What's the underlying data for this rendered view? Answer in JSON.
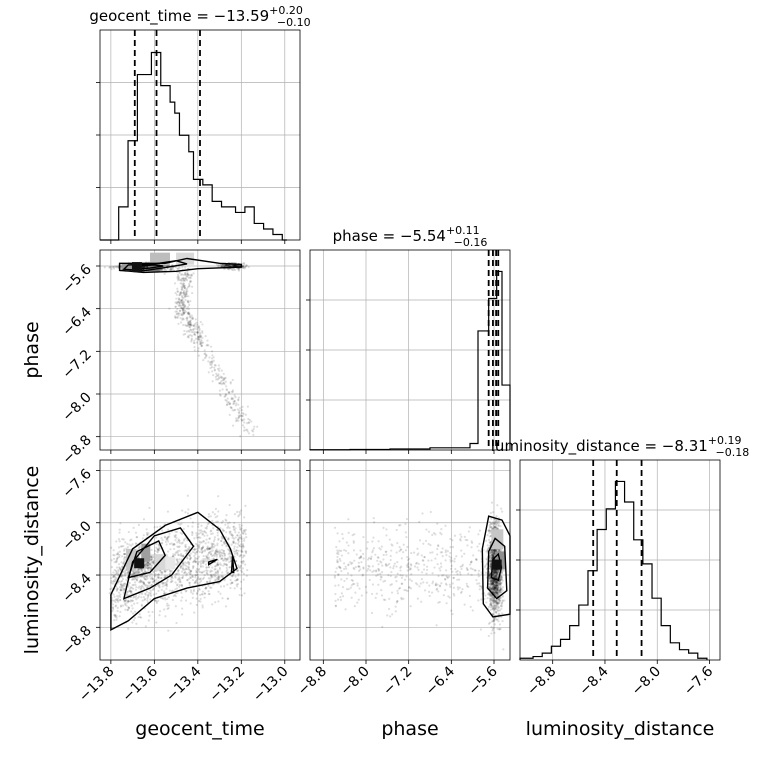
{
  "chart_data": {
    "type": "corner",
    "parameters": [
      "geocent_time",
      "phase",
      "luminosity_distance"
    ],
    "grid": true,
    "panels": [
      {
        "id": "geocent_time",
        "type": "histogram",
        "title": {
          "prefix": "geocent_time = ",
          "value": "−13.59",
          "upper": "+0.20",
          "lower": "−0.10"
        },
        "xlim": [
          -13.85,
          -12.93
        ],
        "bin_edges": [
          -13.85,
          -13.8285,
          -13.807,
          -13.7855,
          -13.764,
          -13.7425,
          -13.721,
          -13.6995,
          -13.678,
          -13.6565,
          -13.635,
          -13.6135,
          -13.592,
          -13.5705,
          -13.549,
          -13.5275,
          -13.506,
          -13.4845,
          -13.463,
          -13.4415,
          -13.42,
          -13.3985,
          -13.377,
          -13.3555,
          -13.334,
          -13.3125,
          -13.291,
          -13.2695,
          -13.248,
          -13.2265,
          -13.205,
          -13.1835,
          -13.162,
          -13.1405,
          -13.119,
          -13.0975,
          -13.076,
          -13.0545,
          -13.033,
          -13.0115,
          -12.99
        ],
        "counts": [
          0,
          0,
          0,
          0,
          6,
          6,
          18,
          18,
          30,
          30,
          30,
          34,
          34,
          28,
          28,
          25,
          23,
          19,
          19,
          16,
          11,
          11,
          10,
          10,
          7,
          7,
          6,
          6,
          6,
          5,
          5,
          6,
          6,
          3,
          3,
          2,
          2,
          1,
          1,
          0
        ],
        "quantile_lines": [
          -13.69,
          -13.59,
          -13.39
        ],
        "x_ticks": [
          -13.8,
          -13.6,
          -13.4,
          -13.2,
          -13.0
        ]
      },
      {
        "id": "phase",
        "type": "histogram",
        "title": {
          "prefix": "phase = ",
          "value": "−5.54",
          "upper": "+0.11",
          "lower": "−0.16"
        },
        "xlim": [
          -9.05,
          -5.3
        ],
        "bin_edges": [
          -9.05,
          -8.3,
          -7.55,
          -6.8,
          -6.05,
          -5.9,
          -5.7,
          -5.55,
          -5.45,
          -5.3
        ],
        "counts": [
          0.2,
          0.5,
          1,
          2,
          6,
          110,
          140,
          165,
          60
        ],
        "quantile_lines": [
          -5.7,
          -5.62,
          -5.56,
          -5.52
        ],
        "x_ticks": [
          -8.8,
          -8.0,
          -7.2,
          -6.4,
          -5.6
        ]
      },
      {
        "id": "luminosity_distance",
        "type": "histogram",
        "title": {
          "prefix": "luminosity_distance = ",
          "value": "−8.31",
          "upper": "+0.19",
          "lower": "−0.18"
        },
        "xlim": [
          -9.05,
          -7.52
        ],
        "bin_edges": [
          -9.05,
          -8.95,
          -8.88,
          -8.81,
          -8.74,
          -8.67,
          -8.6,
          -8.53,
          -8.46,
          -8.39,
          -8.32,
          -8.25,
          -8.18,
          -8.11,
          -8.04,
          -7.97,
          -7.9,
          -7.83,
          -7.76,
          -7.69,
          -7.62
        ],
        "counts": [
          0.5,
          1,
          2,
          4,
          6,
          10,
          16,
          26,
          38,
          44,
          52,
          46,
          35,
          28,
          18,
          10,
          5,
          3,
          2,
          0.5
        ],
        "quantile_lines": [
          -8.49,
          -8.31,
          -8.12
        ],
        "x_ticks": [
          -8.8,
          -8.4,
          -8.0,
          -7.6
        ]
      },
      {
        "id": "phase_vs_geocent_time",
        "type": "scatter-density",
        "x": "geocent_time",
        "y": "phase",
        "xlim": [
          -13.85,
          -12.93
        ],
        "ylim": [
          -9.05,
          -5.3
        ],
        "y_ticks": [
          -5.6,
          -6.4,
          -7.2,
          -8.0,
          -8.8
        ],
        "mode": [
          -13.68,
          -5.62
        ],
        "ridge": [
          [
            -13.45,
            -5.6
          ],
          [
            -13.48,
            -6.4
          ],
          [
            -13.4,
            -7.0
          ],
          [
            -13.25,
            -7.8
          ],
          [
            -13.15,
            -8.5
          ]
        ]
      },
      {
        "id": "luminosity_distance_vs_geocent_time",
        "type": "scatter-density",
        "x": "geocent_time",
        "y": "luminosity_distance",
        "xlim": [
          -13.85,
          -12.93
        ],
        "ylim": [
          -9.05,
          -7.52
        ],
        "y_ticks": [
          -7.6,
          -8.0,
          -8.4,
          -8.8
        ],
        "mode": [
          -13.67,
          -8.31
        ]
      },
      {
        "id": "luminosity_distance_vs_phase",
        "type": "scatter-density",
        "x": "phase",
        "y": "luminosity_distance",
        "xlim": [
          -9.05,
          -5.3
        ],
        "ylim": [
          -9.05,
          -7.52
        ],
        "mode": [
          -5.55,
          -8.32
        ]
      }
    ]
  }
}
